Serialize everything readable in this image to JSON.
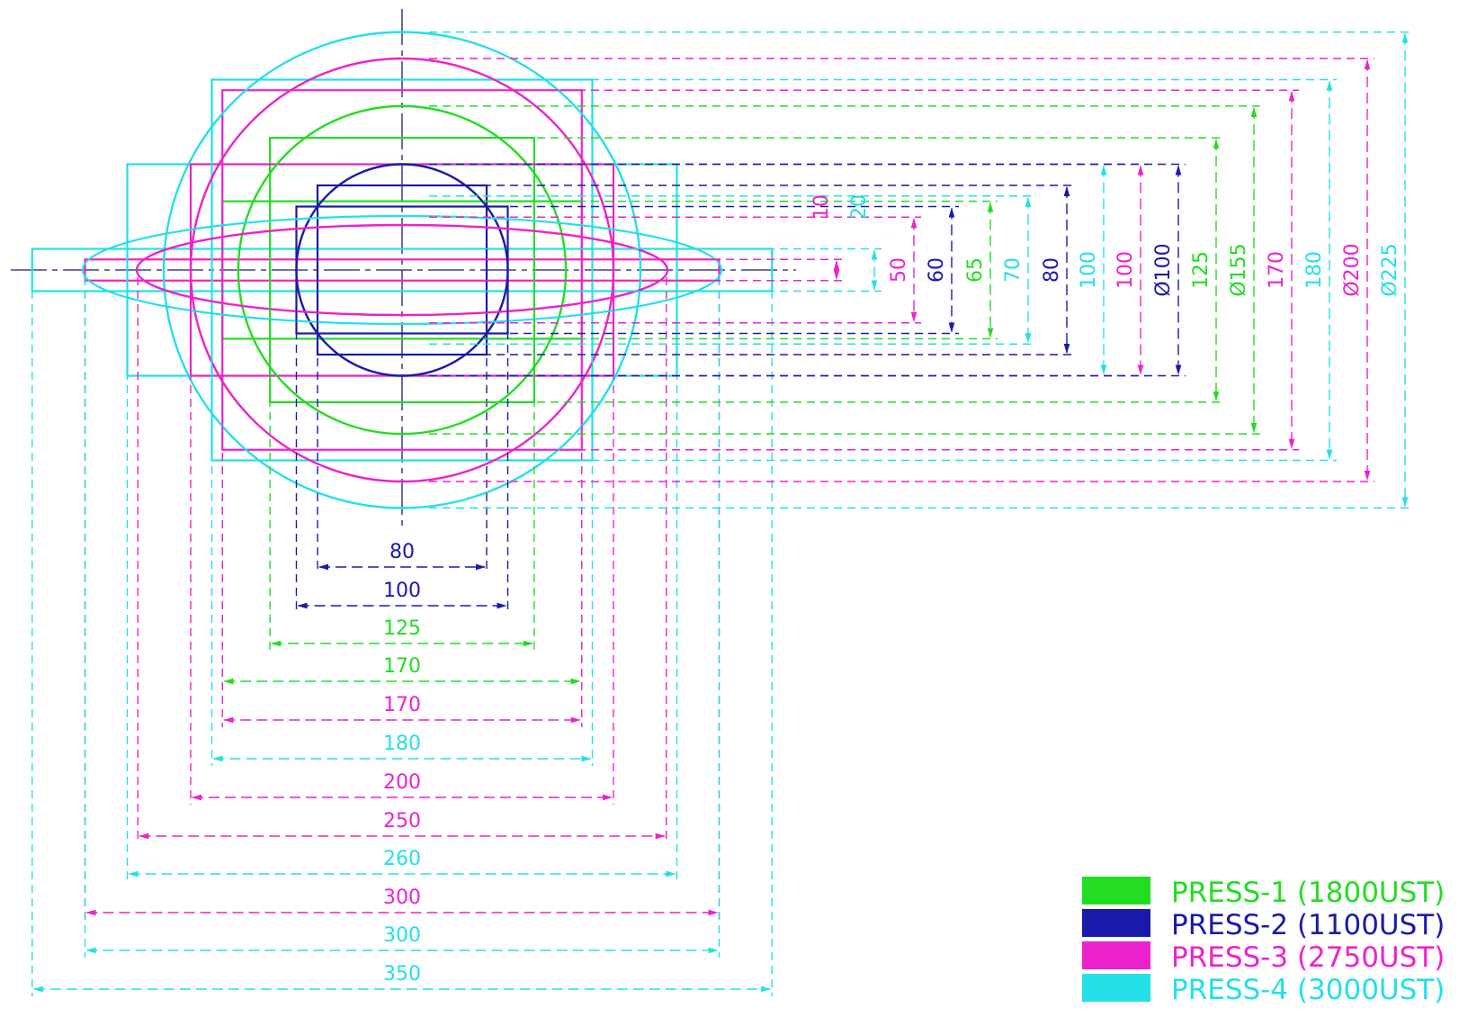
{
  "colors": {
    "press1": "#22dd22",
    "press2": "#1a1aaa",
    "press3": "#ee22cc",
    "press4": "#22e0e8",
    "centerline": "#1a1a6e"
  },
  "legend": [
    {
      "label": "PRESS-1 (1800UST)",
      "color": "#22dd22"
    },
    {
      "label": "PRESS-2 (1100UST)",
      "color": "#1a1aaa"
    },
    {
      "label": "PRESS-3 (2750UST)",
      "color": "#ee22cc"
    },
    {
      "label": "PRESS-4 (3000UST)",
      "color": "#22e0e8"
    }
  ],
  "horizontal_dimensions": [
    {
      "text": "80",
      "value": 80,
      "press": "press2"
    },
    {
      "text": "100",
      "value": 100,
      "press": "press2"
    },
    {
      "text": "125",
      "value": 125,
      "press": "press1"
    },
    {
      "text": "170",
      "value": 170,
      "press": "press1"
    },
    {
      "text": "170",
      "value": 170,
      "press": "press3"
    },
    {
      "text": "180",
      "value": 180,
      "press": "press4"
    },
    {
      "text": "200",
      "value": 200,
      "press": "press3"
    },
    {
      "text": "250",
      "value": 250,
      "press": "press3"
    },
    {
      "text": "260",
      "value": 260,
      "press": "press4"
    },
    {
      "text": "300",
      "value": 300,
      "press": "press3"
    },
    {
      "text": "300",
      "value": 300,
      "press": "press4"
    },
    {
      "text": "350",
      "value": 350,
      "press": "press4"
    }
  ],
  "vertical_dimensions": [
    {
      "text": "10",
      "value": 10,
      "press": "press3"
    },
    {
      "text": "20",
      "value": 20,
      "press": "press4"
    },
    {
      "text": "50",
      "value": 50,
      "press": "press3"
    },
    {
      "text": "60",
      "value": 60,
      "press": "press2"
    },
    {
      "text": "65",
      "value": 65,
      "press": "press1"
    },
    {
      "text": "70",
      "value": 70,
      "press": "press4"
    },
    {
      "text": "80",
      "value": 80,
      "press": "press2"
    },
    {
      "text": "100",
      "value": 100,
      "press": "press4"
    },
    {
      "text": "100",
      "value": 100,
      "press": "press3"
    },
    {
      "text": "Ø100",
      "value": 100,
      "press": "press2"
    },
    {
      "text": "125",
      "value": 125,
      "press": "press1"
    },
    {
      "text": "Ø155",
      "value": 155,
      "press": "press1"
    },
    {
      "text": "170",
      "value": 170,
      "press": "press3"
    },
    {
      "text": "180",
      "value": 180,
      "press": "press4"
    },
    {
      "text": "Ø200",
      "value": 200,
      "press": "press3"
    },
    {
      "text": "Ø225",
      "value": 225,
      "press": "press4"
    }
  ]
}
